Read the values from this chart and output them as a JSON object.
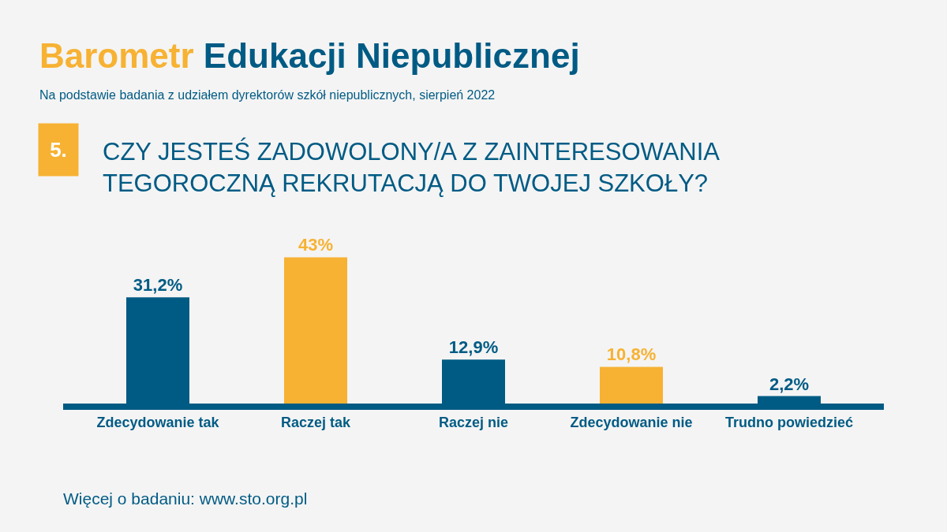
{
  "chart_data": {
    "type": "bar",
    "title": "Barometr Edukacji Niepublicznej",
    "subtitle": "Na podstawie badania z udziałem dyrektorów szkół niepublicznych, sierpień 2022",
    "annotations": [
      "5.",
      "CZY JESTEŚ ZADOWOLONY/A Z ZAINTERESOWANIA TEGOROCZNĄ REKRUTACJĄ DO TWOJEJ SZKOŁY?",
      "Więcej o badaniu: www.sto.org.pl"
    ],
    "categories": [
      "Zdecydowanie tak",
      "Raczej tak",
      "Raczej nie",
      "Zdecydowanie nie",
      "Trudno powiedzieć"
    ],
    "values": [
      31.2,
      43,
      12.9,
      10.8,
      2.2
    ],
    "colors": [
      "#005b84",
      "#f7b233",
      "#005b84",
      "#f7b233",
      "#005b84"
    ],
    "value_labels": [
      "31,2%",
      "43%",
      "12,9%",
      "10,8%",
      "2,2%"
    ]
  }
}
